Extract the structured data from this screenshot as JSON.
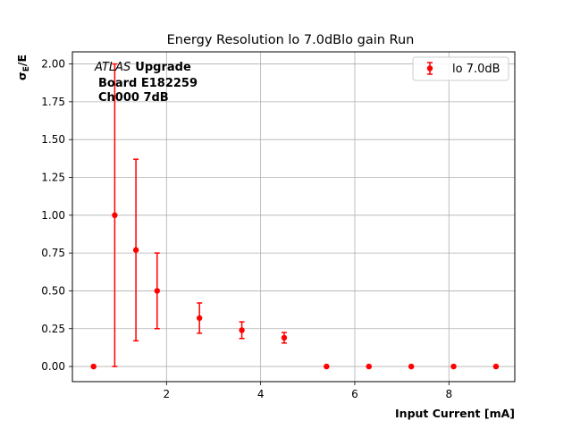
{
  "chart_data": {
    "type": "scatter",
    "title": "Energy Resolution lo 7.0dBlo gain Run",
    "xlabel": "Input Current [mA]",
    "ylabel_main": "σ",
    "ylabel_sub": "E",
    "ylabel_tail": "/E",
    "annotation": {
      "experiment": "ATLAS",
      "tag": "Upgrade",
      "board": "Board E182259",
      "channel": "Ch000 7dB"
    },
    "xlim": [
      0.0,
      9.4
    ],
    "ylim": [
      -0.1,
      2.08
    ],
    "xticks": [
      2,
      4,
      6,
      8
    ],
    "xtick_labels": [
      "2",
      "4",
      "6",
      "8"
    ],
    "yticks": [
      0.0,
      0.25,
      0.5,
      0.75,
      1.0,
      1.25,
      1.5,
      1.75,
      2.0
    ],
    "ytick_labels": [
      "0.00",
      "0.25",
      "0.50",
      "0.75",
      "1.00",
      "1.25",
      "1.50",
      "1.75",
      "2.00"
    ],
    "grid": true,
    "legend_position": "top-right",
    "series": [
      {
        "name": "lo 7.0dB",
        "color": "#ff0000",
        "x": [
          0.45,
          0.9,
          1.35,
          1.8,
          2.7,
          3.6,
          4.5,
          5.4,
          6.3,
          7.2,
          8.1,
          9.0
        ],
        "y": [
          0.0,
          1.0,
          0.77,
          0.5,
          0.32,
          0.24,
          0.19,
          0.0,
          0.0,
          0.0,
          0.0,
          0.0
        ],
        "yerr": [
          0.0,
          1.0,
          0.6,
          0.25,
          0.1,
          0.055,
          0.035,
          0.0,
          0.0,
          0.0,
          0.0,
          0.0
        ]
      }
    ]
  }
}
